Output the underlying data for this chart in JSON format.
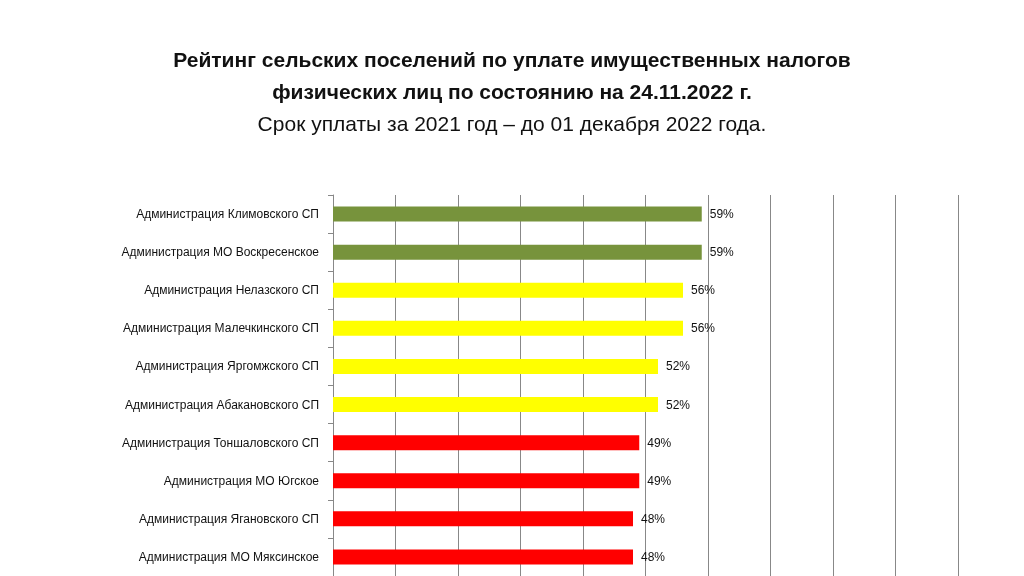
{
  "chart_data": {
    "type": "bar",
    "orientation": "horizontal",
    "title": "Рейтинг сельских поселений по уплате имущественных налогов физических лиц по состоянию на 24.11.2022 г.",
    "subtitle": "Срок уплаты за 2021 год – до 01 декабря 2022 года.",
    "categories": [
      "Администрация Климовского СП",
      "Администрация МО Воскресенское",
      "Администрация Нелазского СП",
      "Администрация Малечкинского СП",
      "Администрация Яргомжского СП",
      "Администрация Абакановского СП",
      "Администрация Тоншаловского СП",
      "Администрация МО Югское",
      "Администрация Ягановского СП",
      "Администрация МО Мяксинское"
    ],
    "values": [
      59,
      59,
      56,
      56,
      52,
      52,
      49,
      49,
      48,
      48
    ],
    "value_labels": [
      "59%",
      "59%",
      "56%",
      "56%",
      "52%",
      "52%",
      "49%",
      "49%",
      "48%",
      "48%"
    ],
    "colors": [
      "#77933c",
      "#77933c",
      "#ffff00",
      "#ffff00",
      "#ffff00",
      "#ffff00",
      "#ff0000",
      "#ff0000",
      "#ff0000",
      "#ff0000"
    ],
    "xlim": [
      0,
      100
    ],
    "xticks": [
      {
        "value": 0,
        "label": null
      },
      {
        "value": 10,
        "label": null
      },
      {
        "value": 20,
        "label": null
      },
      {
        "value": 30,
        "label": null
      },
      {
        "value": 40,
        "label": null
      },
      {
        "value": 50,
        "label": null
      },
      {
        "value": 60,
        "label": null
      },
      {
        "value": 70,
        "label": null
      },
      {
        "value": 80,
        "label": null
      },
      {
        "value": 90,
        "label": null
      },
      {
        "value": 100,
        "label": null
      }
    ],
    "grid": "x",
    "tick_labels": "y"
  }
}
